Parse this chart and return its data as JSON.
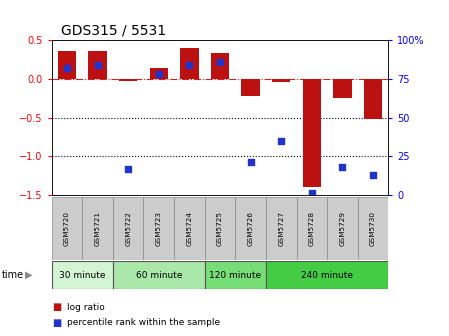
{
  "title": "GDS315 / 5531",
  "samples": [
    "GSM5720",
    "GSM5721",
    "GSM5722",
    "GSM5723",
    "GSM5724",
    "GSM5725",
    "GSM5726",
    "GSM5727",
    "GSM5728",
    "GSM5729",
    "GSM5730"
  ],
  "log_ratio": [
    0.36,
    0.36,
    -0.02,
    0.14,
    0.4,
    0.34,
    -0.22,
    -0.04,
    -1.4,
    -0.24,
    -0.52
  ],
  "percentile": [
    82,
    84,
    17,
    78,
    84,
    86,
    21,
    35,
    1,
    18,
    13
  ],
  "ylim_left": [
    -1.5,
    0.5
  ],
  "ylim_right": [
    0,
    100
  ],
  "hlines": [
    -1.0,
    -0.5
  ],
  "bar_color": "#bb1111",
  "dot_color": "#2233cc",
  "zero_line_color": "#cc2222",
  "hline_color": "#000000",
  "groups": [
    {
      "label": "30 minute",
      "start": 0,
      "end": 1,
      "color": "#d4f5d4"
    },
    {
      "label": "60 minute",
      "start": 2,
      "end": 4,
      "color": "#aae8aa"
    },
    {
      "label": "120 minute",
      "start": 5,
      "end": 6,
      "color": "#77dd77"
    },
    {
      "label": "240 minute",
      "start": 7,
      "end": 10,
      "color": "#44cc44"
    }
  ],
  "legend_items": [
    {
      "label": "log ratio",
      "color": "#bb1111"
    },
    {
      "label": "percentile rank within the sample",
      "color": "#2233cc"
    }
  ],
  "title_fontsize": 10,
  "bar_width": 0.6
}
